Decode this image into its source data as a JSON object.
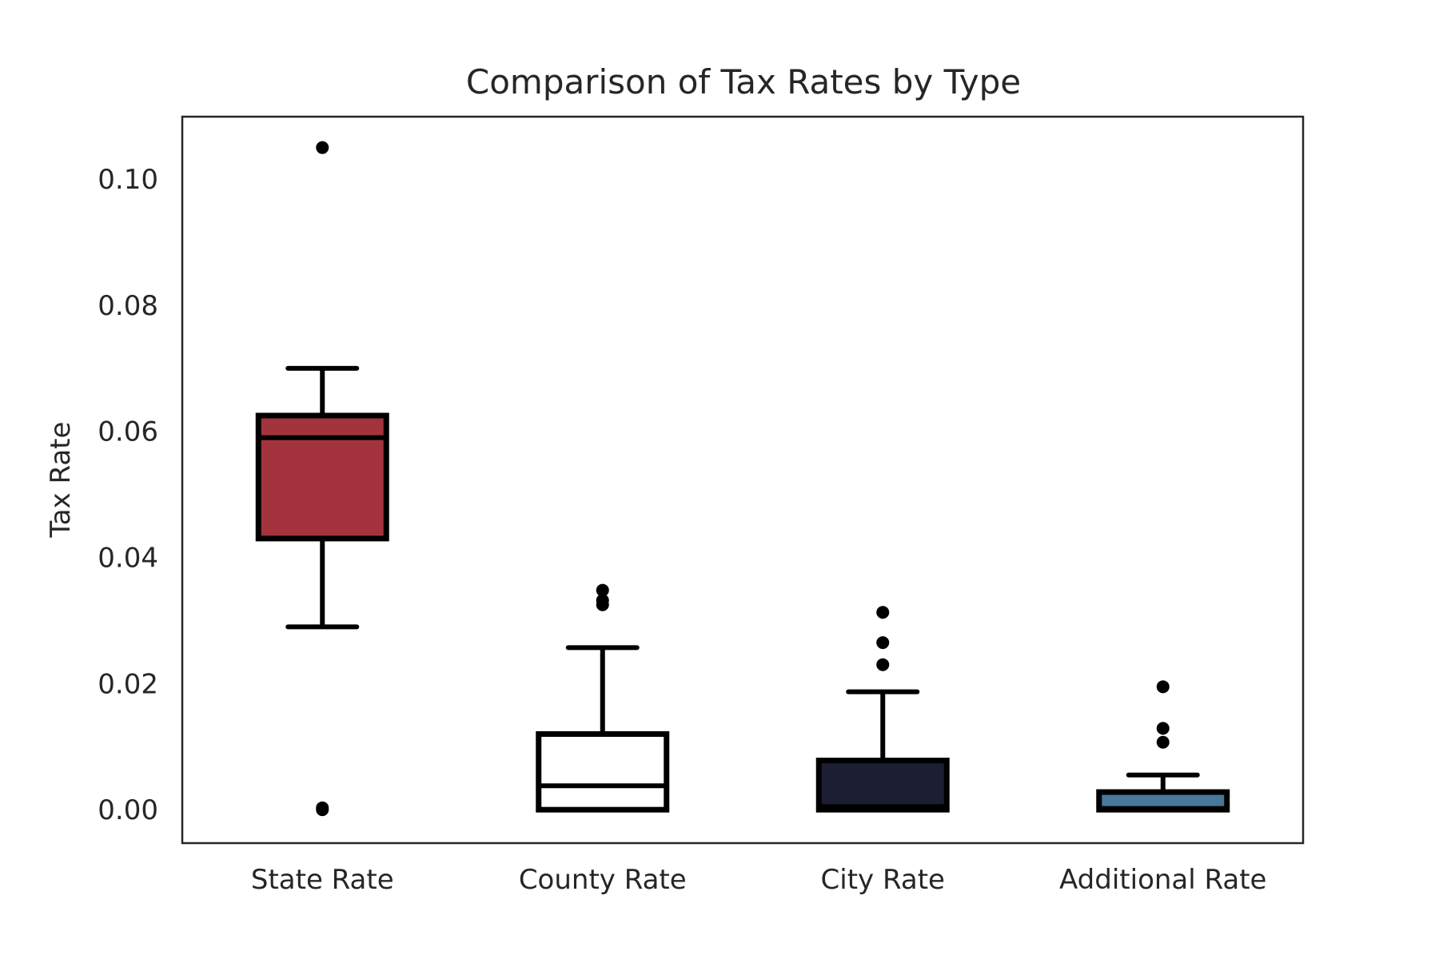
{
  "chart_data": {
    "type": "box",
    "title": "Comparison of Tax Rates by Type",
    "xlabel": "",
    "ylabel": "Tax Rate",
    "ylim": [
      -0.0053,
      0.1099
    ],
    "yticks": [
      0.0,
      0.02,
      0.04,
      0.06,
      0.08,
      0.1
    ],
    "ytick_labels": [
      "0.00",
      "0.02",
      "0.04",
      "0.06",
      "0.08",
      "0.10"
    ],
    "grid": false,
    "categories": [
      "State Rate",
      "County Rate",
      "City Rate",
      "Additional Rate"
    ],
    "boxes": [
      {
        "category": "State Rate",
        "whisker_low": 0.029,
        "q1": 0.043,
        "median": 0.059,
        "q3": 0.0625,
        "whisker_high": 0.07,
        "outliers": [
          0.105,
          0.0,
          0.0003
        ],
        "color": "#a3333d"
      },
      {
        "category": "County Rate",
        "whisker_low": 0.0,
        "q1": 0.0,
        "median": 0.0038,
        "q3": 0.012,
        "whisker_high": 0.0257,
        "outliers": [
          0.0348,
          0.0332,
          0.0325
        ],
        "color": "#ffffff"
      },
      {
        "category": "City Rate",
        "whisker_low": 0.0,
        "q1": 0.0,
        "median": 0.0005,
        "q3": 0.0078,
        "whisker_high": 0.0187,
        "outliers": [
          0.0313,
          0.0265,
          0.023
        ],
        "color": "#1c1f33"
      },
      {
        "category": "Additional Rate",
        "whisker_low": 0.0,
        "q1": 0.0,
        "median": 0.0002,
        "q3": 0.0028,
        "whisker_high": 0.0055,
        "outliers": [
          0.0195,
          0.0129,
          0.0107
        ],
        "color": "#477998"
      }
    ]
  }
}
